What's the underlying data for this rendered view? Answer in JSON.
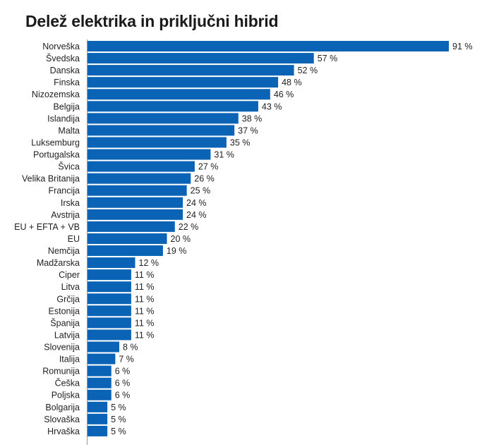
{
  "chart_data": {
    "type": "bar",
    "orientation": "horizontal",
    "title": "Delež elektrika in priključni hibrid",
    "xlabel": "",
    "ylabel": "",
    "value_suffix": " %",
    "xlim": [
      0,
      91
    ],
    "grid": false,
    "bar_color": "#0b63b6",
    "categories": [
      "Norveška",
      "Švedska",
      "Danska",
      "Finska",
      "Nizozemska",
      "Belgija",
      "Islandija",
      "Malta",
      "Luksemburg",
      "Portugalska",
      "Švica",
      "Velika Britanija",
      "Francija",
      "Irska",
      "Avstrija",
      "EU + EFTA + VB",
      "EU",
      "Nemčija",
      "Madžarska",
      "Ciper",
      "Litva",
      "Grčija",
      "Estonija",
      "Španija",
      "Latvija",
      "Slovenija",
      "Italija",
      "Romunija",
      "Češka",
      "Poljska",
      "Bolgarija",
      "Slovaška",
      "Hrvaška"
    ],
    "values": [
      91,
      57,
      52,
      48,
      46,
      43,
      38,
      37,
      35,
      31,
      27,
      26,
      25,
      24,
      24,
      22,
      20,
      19,
      12,
      11,
      11,
      11,
      11,
      11,
      11,
      8,
      7,
      6,
      6,
      6,
      5,
      5,
      5
    ],
    "value_labels": [
      "91 %",
      "57 %",
      "52 %",
      "48 %",
      "46 %",
      "43 %",
      "38 %",
      "37 %",
      "35 %",
      "31 %",
      "27 %",
      "26 %",
      "25 %",
      "24 %",
      "24 %",
      "22 %",
      "20 %",
      "19 %",
      "12 %",
      "11 %",
      "11 %",
      "11 %",
      "11 %",
      "11 %",
      "11 %",
      "8 %",
      "7 %",
      "6 %",
      "6 %",
      "6 %",
      "5 %",
      "5 %",
      "5 %"
    ]
  }
}
